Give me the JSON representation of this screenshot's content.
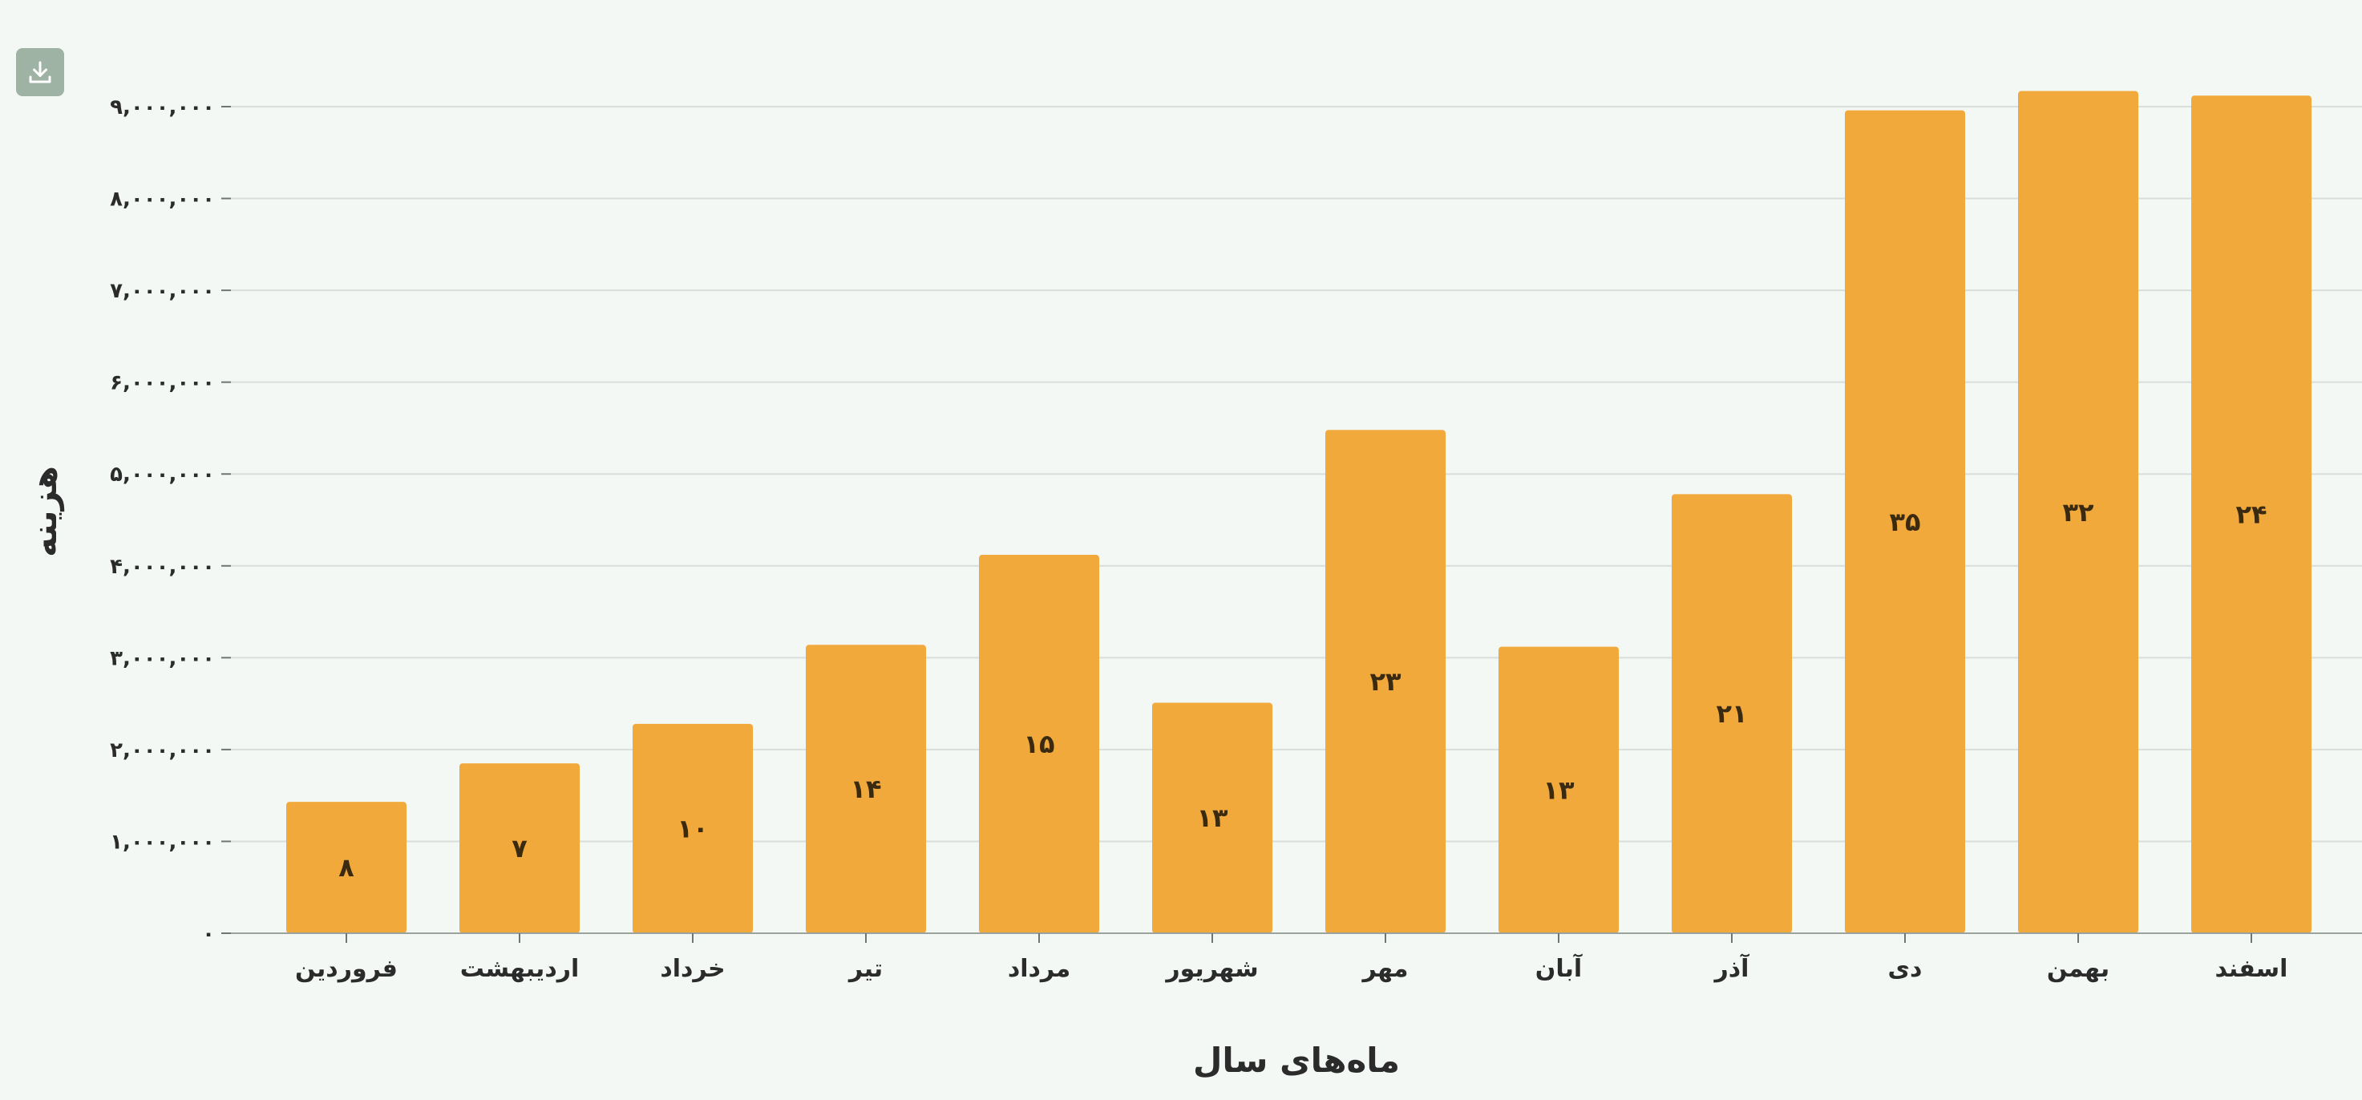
{
  "toolbar": {
    "download_icon": "download-icon"
  },
  "colors": {
    "background": "#f4f8f5",
    "bar": "#f1a93c",
    "download_button": "#9fb3a4",
    "text": "#2b2b2b"
  },
  "chart_data": {
    "type": "bar",
    "title": "",
    "xlabel": "ماه‌های سال",
    "ylabel": "هزینه",
    "ylim": [
      0,
      9000000
    ],
    "y_ticks": [
      0,
      1000000,
      2000000,
      3000000,
      4000000,
      5000000,
      6000000,
      7000000,
      8000000,
      9000000
    ],
    "y_tick_labels": [
      "۰",
      "۱,۰۰۰,۰۰۰",
      "۲,۰۰۰,۰۰۰",
      "۳,۰۰۰,۰۰۰",
      "۴,۰۰۰,۰۰۰",
      "۵,۰۰۰,۰۰۰",
      "۶,۰۰۰,۰۰۰",
      "۷,۰۰۰,۰۰۰",
      "۸,۰۰۰,۰۰۰",
      "۹,۰۰۰,۰۰۰"
    ],
    "grid": true,
    "categories": [
      "فروردین",
      "اردیبهشت",
      "خرداد",
      "تیر",
      "مرداد",
      "شهریور",
      "مهر",
      "آبان",
      "آذر",
      "دی",
      "بهمن",
      "اسفند"
    ],
    "values": [
      1430000,
      1850000,
      2280000,
      3140000,
      4120000,
      2510000,
      5480000,
      3120000,
      4780000,
      8960000,
      9170000,
      9120000
    ],
    "bar_labels": [
      "۸",
      "۷",
      "۱۰",
      "۱۴",
      "۱۵",
      "۱۳",
      "۲۳",
      "۱۳",
      "۲۱",
      "۳۵",
      "۳۲",
      "۲۴"
    ]
  }
}
